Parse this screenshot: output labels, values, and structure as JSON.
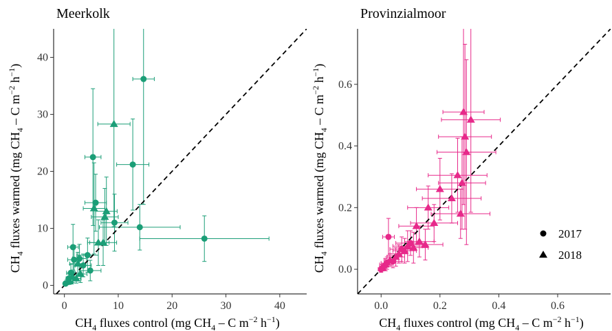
{
  "chart_data": [
    {
      "type": "scatter",
      "title": "Meerkolk",
      "xlabel": {
        "main": "CH",
        "sub": "4",
        "rest": " fluxes control (mg CH",
        "sub2": "4",
        "rest2": " – C m",
        "sup": "−2",
        "rest3": " h",
        "sup2": "−1",
        "end": ")"
      },
      "ylabel": {
        "main": "CH",
        "sub": "4",
        "rest": " fluxes warmed (mg CH",
        "sub2": "4",
        "rest2": " – C m",
        "sup": "−2",
        "rest3": " h",
        "sup2": "−1",
        "end": ")"
      },
      "xlim": [
        -2,
        45
      ],
      "ylim": [
        -1.5,
        45
      ],
      "xticks": [
        0,
        10,
        20,
        30,
        40
      ],
      "yticks": [
        0,
        10,
        20,
        30,
        40
      ],
      "color": "#1b9e77",
      "grid": false,
      "reference_line": "1:1 dashed",
      "points": [
        {
          "x": 0.2,
          "y": 0.3,
          "xe": 0.3,
          "ye": 0.4,
          "year": "2017"
        },
        {
          "x": 0.5,
          "y": 0.6,
          "xe": 0.4,
          "ye": 0.5,
          "year": "2018"
        },
        {
          "x": 0.8,
          "y": 1.2,
          "xe": 0.5,
          "ye": 0.8,
          "year": "2017"
        },
        {
          "x": 1.0,
          "y": 0.7,
          "xe": 0.6,
          "ye": 0.5,
          "year": "2018"
        },
        {
          "x": 1.2,
          "y": 2.2,
          "xe": 0.8,
          "ye": 1.5,
          "year": "2017"
        },
        {
          "x": 1.5,
          "y": 1.5,
          "xe": 0.7,
          "ye": 1.0,
          "year": "2018"
        },
        {
          "x": 1.6,
          "y": 6.7,
          "xe": 1.0,
          "ye": 4.0,
          "year": "2017"
        },
        {
          "x": 1.8,
          "y": 4.5,
          "xe": 1.2,
          "ye": 2.5,
          "year": "2017"
        },
        {
          "x": 2.2,
          "y": 1.2,
          "xe": 0.9,
          "ye": 0.8,
          "year": "2018"
        },
        {
          "x": 2.5,
          "y": 3.8,
          "xe": 1.5,
          "ye": 2.0,
          "year": "2018"
        },
        {
          "x": 2.8,
          "y": 4.7,
          "xe": 1.3,
          "ye": 2.5,
          "year": "2017"
        },
        {
          "x": 3.0,
          "y": 2.0,
          "xe": 1.2,
          "ye": 1.5,
          "year": "2018"
        },
        {
          "x": 3.5,
          "y": 3.5,
          "xe": 1.5,
          "ye": 2.0,
          "year": "2017"
        },
        {
          "x": 4.3,
          "y": 5.3,
          "xe": 2.0,
          "ye": 3.0,
          "year": "2017"
        },
        {
          "x": 4.8,
          "y": 2.6,
          "xe": 2.0,
          "ye": 1.8,
          "year": "2017"
        },
        {
          "x": 5.3,
          "y": 22.5,
          "xe": 1.5,
          "ye": 12.0,
          "year": "2017"
        },
        {
          "x": 5.5,
          "y": 13.5,
          "xe": 2.0,
          "ye": 8.0,
          "year": "2018"
        },
        {
          "x": 5.8,
          "y": 14.5,
          "xe": 2.0,
          "ye": 5.0,
          "year": "2017"
        },
        {
          "x": 6.3,
          "y": 7.5,
          "xe": 2.0,
          "ye": 4.0,
          "year": "2018"
        },
        {
          "x": 7.2,
          "y": 7.5,
          "xe": 2.5,
          "ye": 4.0,
          "year": "2018"
        },
        {
          "x": 7.5,
          "y": 12.0,
          "xe": 2.5,
          "ye": 5.0,
          "year": "2018"
        },
        {
          "x": 7.8,
          "y": 13.0,
          "xe": 2.0,
          "ye": 6.0,
          "year": "2018"
        },
        {
          "x": 9.2,
          "y": 28.3,
          "xe": 3.0,
          "ye": 18.0,
          "year": "2018"
        },
        {
          "x": 9.3,
          "y": 11.0,
          "xe": 2.5,
          "ye": 5.0,
          "year": "2017"
        },
        {
          "x": 12.7,
          "y": 21.2,
          "xe": 3.0,
          "ye": 8.0,
          "year": "2017"
        },
        {
          "x": 14.0,
          "y": 10.2,
          "xe": 7.5,
          "ye": 4.0,
          "year": "2017"
        },
        {
          "x": 14.7,
          "y": 36.2,
          "xe": 2.0,
          "ye": 22.0,
          "year": "2017"
        },
        {
          "x": 26.0,
          "y": 8.2,
          "xe": 12.0,
          "ye": 4.0,
          "year": "2017"
        }
      ]
    },
    {
      "type": "scatter",
      "title": "Provinzialmoor",
      "xlabel": {
        "main": "CH",
        "sub": "4",
        "rest": " fluxes control (mg CH",
        "sub2": "4",
        "rest2": " – C m",
        "sup": "−2",
        "rest3": " h",
        "sup2": "−1",
        "end": ")"
      },
      "ylabel": {
        "main": "CH",
        "sub": "4",
        "rest": " fluxes warmed (mg CH",
        "sub2": "4",
        "rest2": " – C m",
        "sup": "−2",
        "rest3": " h",
        "sup2": "−1",
        "end": ")"
      },
      "xlim": [
        -0.08,
        0.78
      ],
      "ylim": [
        -0.08,
        0.78
      ],
      "xticks": [
        0.0,
        0.2,
        0.4,
        0.6
      ],
      "yticks": [
        0.0,
        0.2,
        0.4,
        0.6
      ],
      "xtick_labels": [
        "0.0",
        "0.2",
        "0.4",
        "0.6"
      ],
      "ytick_labels": [
        "0.0",
        "0.2",
        "0.4",
        "0.6"
      ],
      "color": "#e7298a",
      "grid": false,
      "reference_line": "1:1 dashed",
      "legend": {
        "position": "right",
        "entries": [
          {
            "label": "2017",
            "shape": "circle"
          },
          {
            "label": "2018",
            "shape": "triangle"
          }
        ]
      },
      "points": [
        {
          "x": 0.0,
          "y": 0.0,
          "xe": 0.01,
          "ye": 0.01,
          "year": "2017"
        },
        {
          "x": 0.005,
          "y": 0.005,
          "xe": 0.01,
          "ye": 0.01,
          "year": "2018"
        },
        {
          "x": 0.01,
          "y": 0.01,
          "xe": 0.01,
          "ye": 0.01,
          "year": "2017"
        },
        {
          "x": 0.015,
          "y": 0.015,
          "xe": 0.02,
          "ye": 0.02,
          "year": "2018"
        },
        {
          "x": 0.02,
          "y": 0.02,
          "xe": 0.02,
          "ye": 0.02,
          "year": "2017"
        },
        {
          "x": 0.025,
          "y": 0.105,
          "xe": 0.02,
          "ye": 0.06,
          "year": "2017"
        },
        {
          "x": 0.03,
          "y": 0.03,
          "xe": 0.02,
          "ye": 0.02,
          "year": "2018"
        },
        {
          "x": 0.04,
          "y": 0.025,
          "xe": 0.03,
          "ye": 0.02,
          "year": "2017"
        },
        {
          "x": 0.05,
          "y": 0.04,
          "xe": 0.03,
          "ye": 0.03,
          "year": "2018"
        },
        {
          "x": 0.06,
          "y": 0.05,
          "xe": 0.03,
          "ye": 0.03,
          "year": "2018"
        },
        {
          "x": 0.07,
          "y": 0.065,
          "xe": 0.04,
          "ye": 0.04,
          "year": "2017"
        },
        {
          "x": 0.08,
          "y": 0.06,
          "xe": 0.04,
          "ye": 0.04,
          "year": "2018"
        },
        {
          "x": 0.09,
          "y": 0.075,
          "xe": 0.05,
          "ye": 0.05,
          "year": "2018"
        },
        {
          "x": 0.1,
          "y": 0.085,
          "xe": 0.05,
          "ye": 0.04,
          "year": "2017"
        },
        {
          "x": 0.11,
          "y": 0.07,
          "xe": 0.05,
          "ye": 0.05,
          "year": "2018"
        },
        {
          "x": 0.12,
          "y": 0.14,
          "xe": 0.06,
          "ye": 0.06,
          "year": "2018"
        },
        {
          "x": 0.13,
          "y": 0.09,
          "xe": 0.05,
          "ye": 0.05,
          "year": "2018"
        },
        {
          "x": 0.15,
          "y": 0.08,
          "xe": 0.06,
          "ye": 0.05,
          "year": "2018"
        },
        {
          "x": 0.16,
          "y": 0.2,
          "xe": 0.07,
          "ye": 0.07,
          "year": "2018"
        },
        {
          "x": 0.18,
          "y": 0.15,
          "xe": 0.08,
          "ye": 0.06,
          "year": "2018"
        },
        {
          "x": 0.2,
          "y": 0.26,
          "xe": 0.08,
          "ye": 0.1,
          "year": "2018"
        },
        {
          "x": 0.24,
          "y": 0.23,
          "xe": 0.1,
          "ye": 0.08,
          "year": "2018"
        },
        {
          "x": 0.26,
          "y": 0.305,
          "xe": 0.1,
          "ye": 0.12,
          "year": "2018"
        },
        {
          "x": 0.27,
          "y": 0.18,
          "xe": 0.1,
          "ye": 0.08,
          "year": "2018"
        },
        {
          "x": 0.275,
          "y": 0.28,
          "xe": 0.08,
          "ye": 0.15,
          "year": "2018"
        },
        {
          "x": 0.28,
          "y": 0.51,
          "xe": 0.07,
          "ye": 0.3,
          "year": "2018"
        },
        {
          "x": 0.285,
          "y": 0.43,
          "xe": 0.09,
          "ye": 0.3,
          "year": "2018"
        },
        {
          "x": 0.29,
          "y": 0.38,
          "xe": 0.1,
          "ye": 0.3,
          "year": "2018"
        },
        {
          "x": 0.305,
          "y": 0.485,
          "xe": 0.1,
          "ye": 0.3,
          "year": "2018"
        }
      ]
    }
  ]
}
